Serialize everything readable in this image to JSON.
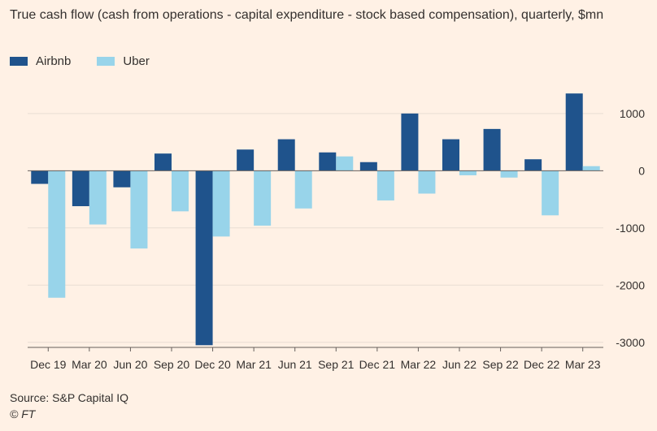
{
  "title": "True cash flow (cash from operations - capital expenditure - stock based compensation), quarterly, $mn",
  "source": "Source: S&P Capital IQ",
  "copyright": "© FT",
  "colors": {
    "background": "#FFF1E5",
    "airbnb": "#1F538C",
    "uber": "#98D4EA",
    "grid": "#E9DED3",
    "zero_line": "#66605C",
    "text": "#33302E"
  },
  "chart_data": {
    "type": "bar",
    "categories": [
      "Dec 19",
      "Mar 20",
      "Jun 20",
      "Sep 20",
      "Dec 20",
      "Mar 21",
      "Jun 21",
      "Sep 21",
      "Dec 21",
      "Mar 22",
      "Jun 22",
      "Sep 22",
      "Dec 22",
      "Mar 23"
    ],
    "series": [
      {
        "name": "Airbnb",
        "color": "#1F538C",
        "values": [
          -230,
          -620,
          -290,
          300,
          -3050,
          370,
          550,
          320,
          150,
          1000,
          550,
          730,
          200,
          1350
        ]
      },
      {
        "name": "Uber",
        "color": "#98D4EA",
        "values": [
          -2220,
          -940,
          -1360,
          -710,
          -1150,
          -960,
          -660,
          250,
          -520,
          -400,
          -80,
          -120,
          -780,
          80
        ]
      }
    ],
    "y_ticks": [
      1000,
      0,
      -1000,
      -2000,
      -3000
    ],
    "y_tick_labels": [
      "1000",
      "0",
      "-1000",
      "-2000",
      "-3000"
    ],
    "ylim": [
      -3060,
      1480
    ],
    "grid": true,
    "legend_position": "top-left",
    "y_axis_position": "right"
  }
}
